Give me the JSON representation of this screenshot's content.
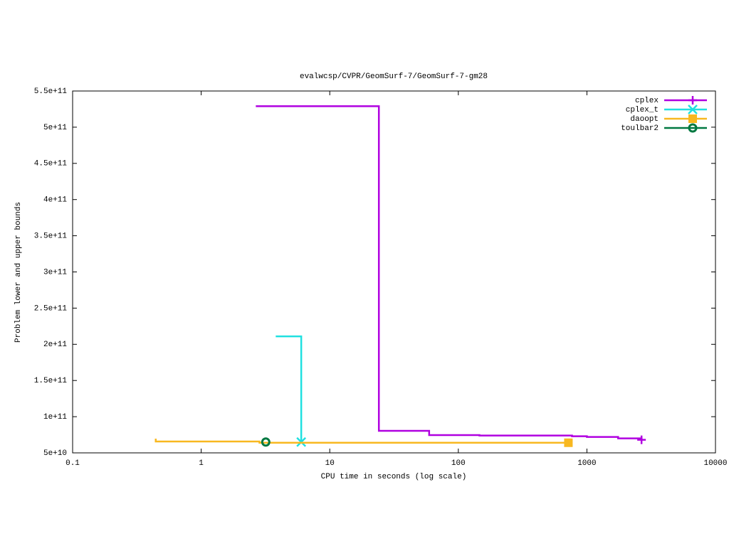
{
  "chart_data": {
    "type": "step",
    "title": "evalwcsp/CVPR/GeomSurf-7/GeomSurf-7-gm28",
    "x_label": "CPU time in seconds (log scale)",
    "y_label": "Problem lower and upper bounds",
    "x_log": true,
    "xlim": [
      0.1,
      10000
    ],
    "xticks": [
      0.1,
      1,
      10,
      100,
      1000,
      10000
    ],
    "ylim": [
      50000000000,
      550000000000
    ],
    "yticks": [
      {
        "value": 50000000000,
        "label": "5e+10"
      },
      {
        "value": 100000000000,
        "label": "1e+11"
      },
      {
        "value": 150000000000,
        "label": "1.5e+11"
      },
      {
        "value": 200000000000,
        "label": "2e+11"
      },
      {
        "value": 250000000000,
        "label": "2.5e+11"
      },
      {
        "value": 300000000000,
        "label": "3e+11"
      },
      {
        "value": 350000000000,
        "label": "3.5e+11"
      },
      {
        "value": 400000000000,
        "label": "4e+11"
      },
      {
        "value": 450000000000,
        "label": "4.5e+11"
      },
      {
        "value": 500000000000,
        "label": "5e+11"
      },
      {
        "value": 550000000000,
        "label": "5.5e+11"
      }
    ],
    "legend_position": "top-right",
    "series": [
      {
        "name": "cplex",
        "color": "#b000e0",
        "marker": "plus",
        "x": [
          2.66,
          24.1,
          59.3,
          146,
          766,
          1000,
          1750,
          2660
        ],
        "values": [
          529000000000,
          80500000000,
          74600000000,
          74000000000,
          73000000000,
          72000000000,
          70000000000,
          68000000000
        ]
      },
      {
        "name": "cplex_t",
        "color": "#20e0e0",
        "marker": "cross",
        "x": [
          3.8,
          6.0
        ],
        "values": [
          211000000000,
          65000000000
        ]
      },
      {
        "name": "daoopt",
        "color": "#f8b820",
        "marker": "square",
        "x": [
          0.443,
          0.443,
          2.84,
          718
        ],
        "values": [
          69700000000,
          65700000000,
          64000000000,
          64000000000
        ]
      },
      {
        "name": "toulbar2",
        "color": "#007840",
        "marker": "circle",
        "x": [
          3.18
        ],
        "values": [
          65000000000
        ]
      }
    ]
  }
}
